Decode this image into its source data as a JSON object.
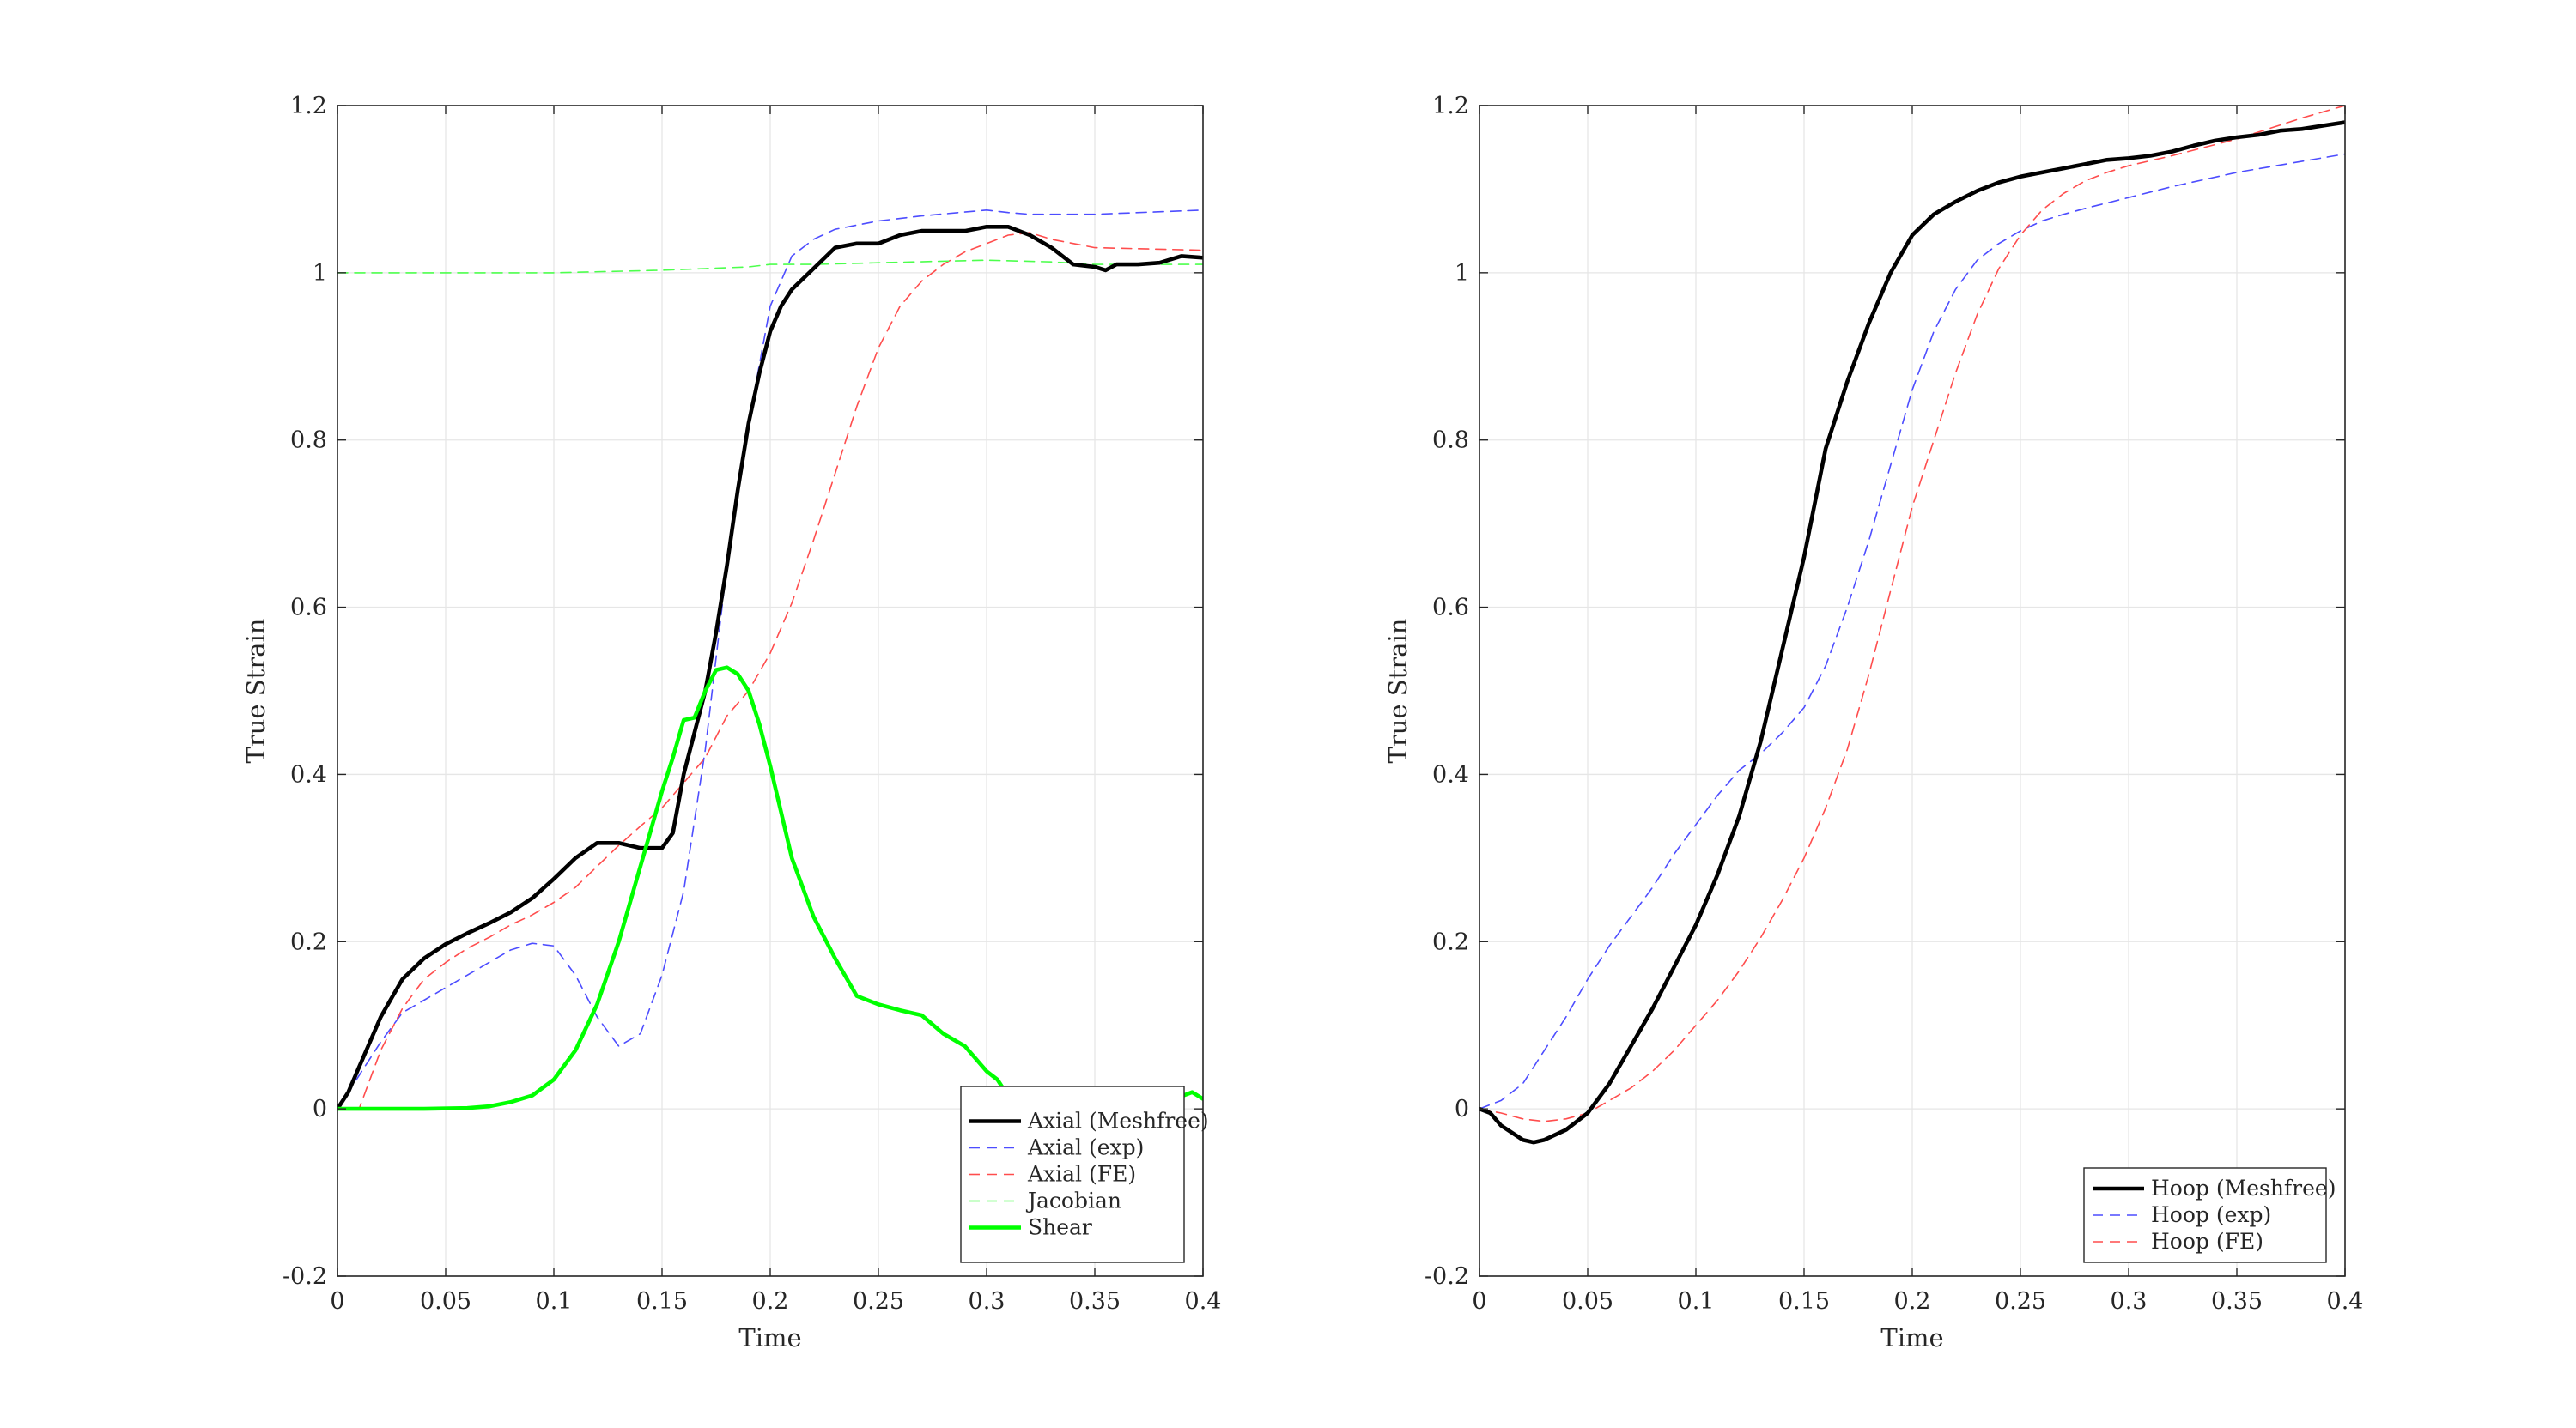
{
  "chart_data": [
    {
      "type": "line",
      "xlabel": "Time",
      "ylabel": "True Strain",
      "xlim": [
        0,
        0.4
      ],
      "ylim": [
        -0.2,
        1.2
      ],
      "xticks": [
        0,
        0.05,
        0.1,
        0.15,
        0.2,
        0.25,
        0.3,
        0.35,
        0.4
      ],
      "xtick_labels": [
        "0",
        "0.05",
        "0.1",
        "0.15",
        "0.2",
        "0.25",
        "0.3",
        "0.35",
        "0.4"
      ],
      "yticks": [
        -0.2,
        0,
        0.2,
        0.4,
        0.6,
        0.8,
        1,
        1.2
      ],
      "ytick_labels": [
        "-0.2",
        "0",
        "0.2",
        "0.4",
        "0.6",
        "0.8",
        "1",
        "1.2"
      ],
      "grid": true,
      "legend_position": "bottom-right",
      "series": [
        {
          "name": "Axial (Meshfree)",
          "color": "#000000",
          "style": "solid",
          "x": [
            0,
            0.005,
            0.01,
            0.02,
            0.03,
            0.04,
            0.05,
            0.06,
            0.07,
            0.08,
            0.09,
            0.1,
            0.11,
            0.12,
            0.13,
            0.14,
            0.15,
            0.155,
            0.16,
            0.165,
            0.17,
            0.175,
            0.18,
            0.185,
            0.19,
            0.195,
            0.2,
            0.205,
            0.21,
            0.22,
            0.23,
            0.24,
            0.25,
            0.26,
            0.27,
            0.28,
            0.29,
            0.3,
            0.31,
            0.32,
            0.33,
            0.34,
            0.35,
            0.355,
            0.36,
            0.37,
            0.38,
            0.39,
            0.4
          ],
          "y": [
            0,
            0.02,
            0.05,
            0.11,
            0.155,
            0.18,
            0.197,
            0.21,
            0.222,
            0.235,
            0.252,
            0.275,
            0.3,
            0.318,
            0.318,
            0.312,
            0.312,
            0.33,
            0.4,
            0.45,
            0.5,
            0.57,
            0.65,
            0.74,
            0.82,
            0.88,
            0.93,
            0.96,
            0.98,
            1.005,
            1.03,
            1.035,
            1.035,
            1.045,
            1.05,
            1.05,
            1.05,
            1.055,
            1.055,
            1.045,
            1.03,
            1.01,
            1.007,
            1.003,
            1.01,
            1.01,
            1.012,
            1.02,
            1.018
          ]
        },
        {
          "name": "Axial (exp)",
          "color": "#4d4dff",
          "style": "dashed",
          "x": [
            0,
            0.01,
            0.02,
            0.03,
            0.04,
            0.05,
            0.06,
            0.07,
            0.08,
            0.09,
            0.1,
            0.11,
            0.12,
            0.13,
            0.14,
            0.15,
            0.16,
            0.17,
            0.18,
            0.19,
            0.2,
            0.21,
            0.22,
            0.23,
            0.25,
            0.27,
            0.3,
            0.31,
            0.32,
            0.35,
            0.4
          ],
          "y": [
            0,
            0.04,
            0.08,
            0.115,
            0.13,
            0.145,
            0.16,
            0.175,
            0.19,
            0.198,
            0.195,
            0.16,
            0.11,
            0.075,
            0.09,
            0.16,
            0.26,
            0.43,
            0.65,
            0.82,
            0.96,
            1.02,
            1.04,
            1.052,
            1.062,
            1.068,
            1.075,
            1.072,
            1.07,
            1.07,
            1.075
          ]
        },
        {
          "name": "Axial (FE)",
          "color": "#ff4d4d",
          "style": "dashed",
          "x": [
            0,
            0.01,
            0.02,
            0.03,
            0.04,
            0.05,
            0.06,
            0.07,
            0.08,
            0.09,
            0.1,
            0.11,
            0.12,
            0.13,
            0.14,
            0.15,
            0.16,
            0.17,
            0.18,
            0.19,
            0.2,
            0.21,
            0.22,
            0.23,
            0.24,
            0.25,
            0.26,
            0.27,
            0.28,
            0.29,
            0.3,
            0.31,
            0.32,
            0.33,
            0.35,
            0.4
          ],
          "y": [
            0,
            0,
            0.07,
            0.12,
            0.155,
            0.175,
            0.192,
            0.205,
            0.22,
            0.232,
            0.247,
            0.265,
            0.29,
            0.315,
            0.338,
            0.36,
            0.39,
            0.42,
            0.47,
            0.5,
            0.545,
            0.605,
            0.68,
            0.76,
            0.84,
            0.91,
            0.96,
            0.99,
            1.01,
            1.025,
            1.035,
            1.045,
            1.048,
            1.04,
            1.03,
            1.027
          ]
        },
        {
          "name": "Jacobian",
          "color": "#4dff4d",
          "style": "dashed",
          "x": [
            0,
            0.05,
            0.1,
            0.15,
            0.17,
            0.19,
            0.2,
            0.22,
            0.25,
            0.3,
            0.33,
            0.35,
            0.4
          ],
          "y": [
            1,
            1,
            1,
            1.003,
            1.005,
            1.007,
            1.01,
            1.01,
            1.012,
            1.015,
            1.013,
            1.01,
            1.01
          ]
        },
        {
          "name": "Shear",
          "color": "#00ff00",
          "style": "solid",
          "x": [
            0,
            0.02,
            0.04,
            0.06,
            0.07,
            0.08,
            0.09,
            0.1,
            0.11,
            0.12,
            0.13,
            0.14,
            0.15,
            0.155,
            0.16,
            0.165,
            0.17,
            0.175,
            0.18,
            0.185,
            0.19,
            0.195,
            0.2,
            0.21,
            0.22,
            0.23,
            0.24,
            0.25,
            0.26,
            0.27,
            0.28,
            0.29,
            0.3,
            0.305,
            0.31,
            0.315,
            0.32,
            0.325,
            0.33,
            0.335,
            0.34,
            0.345,
            0.35,
            0.355,
            0.36,
            0.365,
            0.37,
            0.375,
            0.38,
            0.385,
            0.39,
            0.395,
            0.4
          ],
          "y": [
            0,
            0,
            0,
            0.001,
            0.003,
            0.008,
            0.016,
            0.035,
            0.07,
            0.125,
            0.2,
            0.29,
            0.38,
            0.42,
            0.465,
            0.468,
            0.5,
            0.525,
            0.528,
            0.52,
            0.5,
            0.46,
            0.41,
            0.3,
            0.23,
            0.18,
            0.135,
            0.125,
            0.118,
            0.112,
            0.09,
            0.075,
            0.045,
            0.035,
            0.015,
            0.013,
            0.02,
            0.015,
            0.02,
            0.01,
            0.025,
            0.025,
            0.015,
            -0.01,
            0.02,
            0.005,
            -0.01,
            -0.02,
            -0.01,
            0.0,
            0.015,
            0.02,
            0.012
          ]
        }
      ]
    },
    {
      "type": "line",
      "xlabel": "Time",
      "ylabel": "True Strain",
      "xlim": [
        0,
        0.4
      ],
      "ylim": [
        -0.2,
        1.2
      ],
      "xticks": [
        0,
        0.05,
        0.1,
        0.15,
        0.2,
        0.25,
        0.3,
        0.35,
        0.4
      ],
      "xtick_labels": [
        "0",
        "0.05",
        "0.1",
        "0.15",
        "0.2",
        "0.25",
        "0.3",
        "0.35",
        "0.4"
      ],
      "yticks": [
        -0.2,
        0,
        0.2,
        0.4,
        0.6,
        0.8,
        1,
        1.2
      ],
      "ytick_labels": [
        "-0.2",
        "0",
        "0.2",
        "0.4",
        "0.6",
        "0.8",
        "1",
        "1.2"
      ],
      "grid": true,
      "legend_position": "bottom-right",
      "series": [
        {
          "name": "Hoop (Meshfree)",
          "color": "#000000",
          "style": "solid",
          "x": [
            0,
            0.005,
            0.01,
            0.02,
            0.025,
            0.03,
            0.04,
            0.05,
            0.06,
            0.07,
            0.08,
            0.09,
            0.1,
            0.11,
            0.12,
            0.13,
            0.14,
            0.15,
            0.16,
            0.17,
            0.18,
            0.19,
            0.2,
            0.21,
            0.22,
            0.23,
            0.24,
            0.25,
            0.26,
            0.27,
            0.28,
            0.29,
            0.3,
            0.31,
            0.32,
            0.33,
            0.34,
            0.35,
            0.36,
            0.37,
            0.38,
            0.39,
            0.4
          ],
          "y": [
            0,
            -0.005,
            -0.02,
            -0.037,
            -0.04,
            -0.037,
            -0.025,
            -0.005,
            0.03,
            0.075,
            0.12,
            0.17,
            0.22,
            0.28,
            0.35,
            0.44,
            0.55,
            0.66,
            0.79,
            0.87,
            0.94,
            1.0,
            1.045,
            1.07,
            1.085,
            1.098,
            1.108,
            1.115,
            1.12,
            1.125,
            1.13,
            1.135,
            1.137,
            1.14,
            1.145,
            1.152,
            1.158,
            1.162,
            1.165,
            1.17,
            1.172,
            1.176,
            1.18
          ]
        },
        {
          "name": "Hoop (exp)",
          "color": "#4d4dff",
          "style": "dashed",
          "x": [
            0,
            0.01,
            0.02,
            0.03,
            0.04,
            0.05,
            0.06,
            0.07,
            0.08,
            0.09,
            0.1,
            0.11,
            0.12,
            0.13,
            0.14,
            0.15,
            0.16,
            0.17,
            0.18,
            0.19,
            0.2,
            0.21,
            0.22,
            0.23,
            0.24,
            0.25,
            0.26,
            0.27,
            0.28,
            0.3,
            0.32,
            0.35,
            0.4
          ],
          "y": [
            0,
            0.01,
            0.03,
            0.07,
            0.11,
            0.155,
            0.195,
            0.23,
            0.265,
            0.305,
            0.34,
            0.375,
            0.405,
            0.425,
            0.45,
            0.48,
            0.53,
            0.6,
            0.68,
            0.77,
            0.86,
            0.93,
            0.98,
            1.015,
            1.035,
            1.05,
            1.062,
            1.07,
            1.077,
            1.09,
            1.103,
            1.12,
            1.142
          ]
        },
        {
          "name": "Hoop (FE)",
          "color": "#ff4d4d",
          "style": "dashed",
          "x": [
            0,
            0.01,
            0.02,
            0.03,
            0.04,
            0.05,
            0.06,
            0.07,
            0.08,
            0.09,
            0.1,
            0.11,
            0.12,
            0.13,
            0.14,
            0.15,
            0.16,
            0.17,
            0.18,
            0.19,
            0.2,
            0.21,
            0.22,
            0.23,
            0.24,
            0.25,
            0.26,
            0.27,
            0.28,
            0.29,
            0.3,
            0.32,
            0.35,
            0.38,
            0.4
          ],
          "y": [
            0,
            -0.005,
            -0.012,
            -0.015,
            -0.012,
            -0.005,
            0.01,
            0.025,
            0.045,
            0.07,
            0.1,
            0.13,
            0.165,
            0.205,
            0.25,
            0.3,
            0.36,
            0.43,
            0.52,
            0.62,
            0.72,
            0.8,
            0.88,
            0.95,
            1.005,
            1.045,
            1.075,
            1.095,
            1.11,
            1.12,
            1.128,
            1.14,
            1.16,
            1.185,
            1.2
          ]
        }
      ]
    }
  ]
}
